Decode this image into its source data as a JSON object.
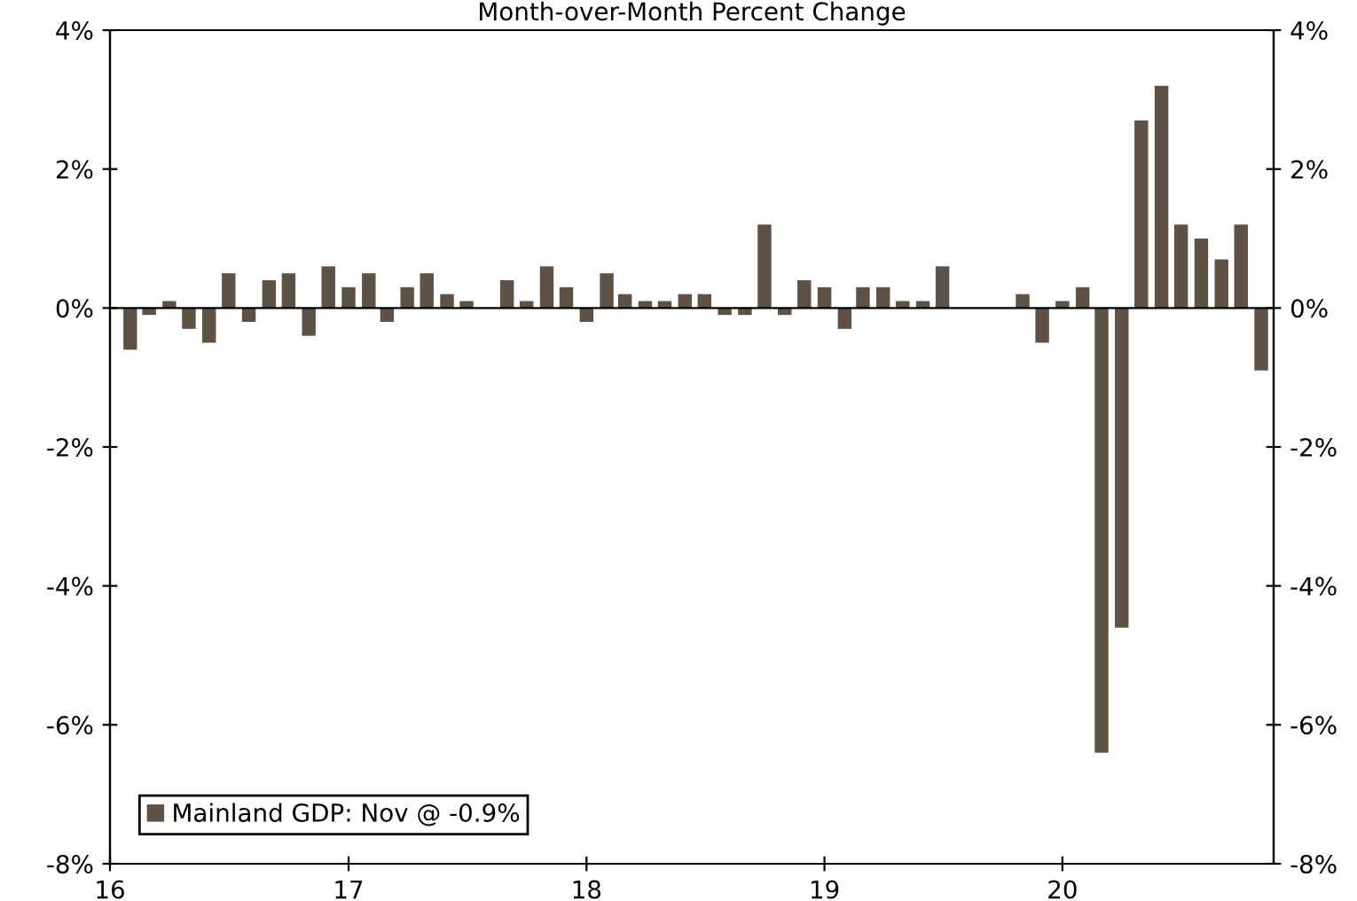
{
  "chart_data": {
    "type": "bar",
    "title": "Month-over-Month Percent Change",
    "x": [
      "2016-02",
      "2016-03",
      "2016-04",
      "2016-05",
      "2016-06",
      "2016-07",
      "2016-08",
      "2016-09",
      "2016-10",
      "2016-11",
      "2016-12",
      "2017-01",
      "2017-02",
      "2017-03",
      "2017-04",
      "2017-05",
      "2017-06",
      "2017-07",
      "2017-08",
      "2017-09",
      "2017-10",
      "2017-11",
      "2017-12",
      "2018-01",
      "2018-02",
      "2018-03",
      "2018-04",
      "2018-05",
      "2018-06",
      "2018-07",
      "2018-08",
      "2018-09",
      "2018-10",
      "2018-11",
      "2018-12",
      "2019-01",
      "2019-02",
      "2019-03",
      "2019-04",
      "2019-05",
      "2019-06",
      "2019-07",
      "2019-08",
      "2019-09",
      "2019-10",
      "2019-11",
      "2019-12",
      "2020-01",
      "2020-02",
      "2020-03",
      "2020-04",
      "2020-05",
      "2020-06",
      "2020-07",
      "2020-08",
      "2020-09",
      "2020-10",
      "2020-11"
    ],
    "series": [
      {
        "name": "Mainland GDP: Nov @ -0.9%",
        "color": "#5e5246",
        "values": [
          -0.6,
          -0.1,
          0.1,
          -0.3,
          -0.5,
          0.5,
          -0.2,
          0.4,
          0.5,
          -0.4,
          0.6,
          0.3,
          0.5,
          -0.2,
          0.3,
          0.5,
          0.2,
          0.1,
          0,
          0.4,
          0.1,
          0.6,
          0.3,
          -0.2,
          0.5,
          0.2,
          0.1,
          0.1,
          0.2,
          0.2,
          -0.1,
          -0.1,
          1.2,
          -0.1,
          0.4,
          0.3,
          -0.3,
          0.3,
          0.3,
          0.1,
          0.1,
          0.6,
          null,
          null,
          null,
          0.2,
          -0.5,
          0.1,
          0.3,
          -6.4,
          -4.6,
          2.7,
          3.2,
          1.2,
          1.0,
          0.7,
          1.2,
          -0.9
        ]
      }
    ],
    "xlim": [
      "2016-01-01",
      "2020-11-20"
    ],
    "xticks": [
      {
        "value": "2016-01",
        "label": "16"
      },
      {
        "value": "2017-01",
        "label": "17"
      },
      {
        "value": "2018-01",
        "label": "18"
      },
      {
        "value": "2019-01",
        "label": "19"
      },
      {
        "value": "2020-01",
        "label": "20"
      }
    ],
    "ylim": [
      -8,
      4
    ],
    "yticks": [
      {
        "value": -8,
        "label": "-8%"
      },
      {
        "value": -6,
        "label": "-6%"
      },
      {
        "value": -4,
        "label": "-4%"
      },
      {
        "value": -2,
        "label": "-2%"
      },
      {
        "value": 0,
        "label": "0%"
      },
      {
        "value": 2,
        "label": "2%"
      },
      {
        "value": 4,
        "label": "4%"
      }
    ],
    "y2lim": [
      -8,
      4
    ],
    "y2ticks": [
      {
        "value": -8,
        "label": "-8%"
      },
      {
        "value": -6,
        "label": "-6%"
      },
      {
        "value": -4,
        "label": "-4%"
      },
      {
        "value": -2,
        "label": "-2%"
      },
      {
        "value": 0,
        "label": "0%"
      },
      {
        "value": 2,
        "label": "2%"
      },
      {
        "value": 4,
        "label": "4%"
      }
    ],
    "ref_lines": [
      {
        "axis": "y",
        "value": 0,
        "color": "#000000"
      }
    ],
    "legend": "bottom left"
  }
}
